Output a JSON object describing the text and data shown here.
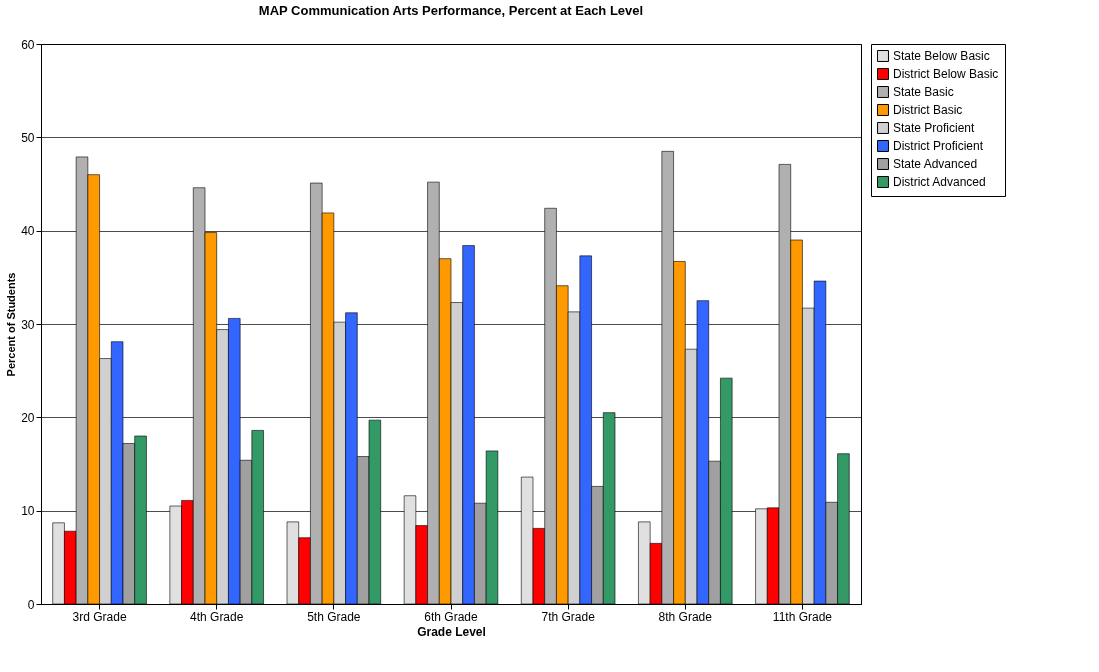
{
  "chart_data": {
    "type": "bar",
    "title": "MAP Communication Arts Performance, Percent at Each Level",
    "xlabel": "Grade Level",
    "ylabel": "Percent of Students",
    "categories": [
      "3rd Grade",
      "4th Grade",
      "5th Grade",
      "6th Grade",
      "7th Grade",
      "8th Grade",
      "11th Grade"
    ],
    "series": [
      {
        "name": "State Below Basic",
        "color": "#e0e0e0",
        "values": [
          8.7,
          10.5,
          8.8,
          11.6,
          13.6,
          8.8,
          10.2
        ]
      },
      {
        "name": "District Below Basic",
        "color": "#ff0000",
        "values": [
          7.8,
          11.1,
          7.1,
          8.4,
          8.1,
          6.5,
          10.3
        ]
      },
      {
        "name": "State Basic",
        "color": "#b0b0b0",
        "values": [
          47.9,
          44.6,
          45.1,
          45.2,
          42.4,
          48.5,
          47.1
        ]
      },
      {
        "name": "District Basic",
        "color": "#ff9900",
        "values": [
          46.0,
          39.8,
          41.9,
          37.0,
          34.1,
          36.7,
          39.0
        ]
      },
      {
        "name": "State Proficient",
        "color": "#d0d0d0",
        "values": [
          26.3,
          29.4,
          30.2,
          32.3,
          31.3,
          27.3,
          31.7
        ]
      },
      {
        "name": "District Proficient",
        "color": "#3366ff",
        "values": [
          28.1,
          30.6,
          31.2,
          38.4,
          37.3,
          32.5,
          34.6
        ]
      },
      {
        "name": "State Advanced",
        "color": "#a0a0a0",
        "values": [
          17.2,
          15.4,
          15.8,
          10.8,
          12.6,
          15.3,
          10.9
        ]
      },
      {
        "name": "District Advanced",
        "color": "#339966",
        "values": [
          18.0,
          18.6,
          19.7,
          16.4,
          20.5,
          24.2,
          16.1
        ]
      }
    ],
    "ylim": [
      0,
      60
    ],
    "yticks": [
      0,
      10,
      20,
      30,
      40,
      50,
      60
    ],
    "grid": "y",
    "legend": "top right"
  }
}
